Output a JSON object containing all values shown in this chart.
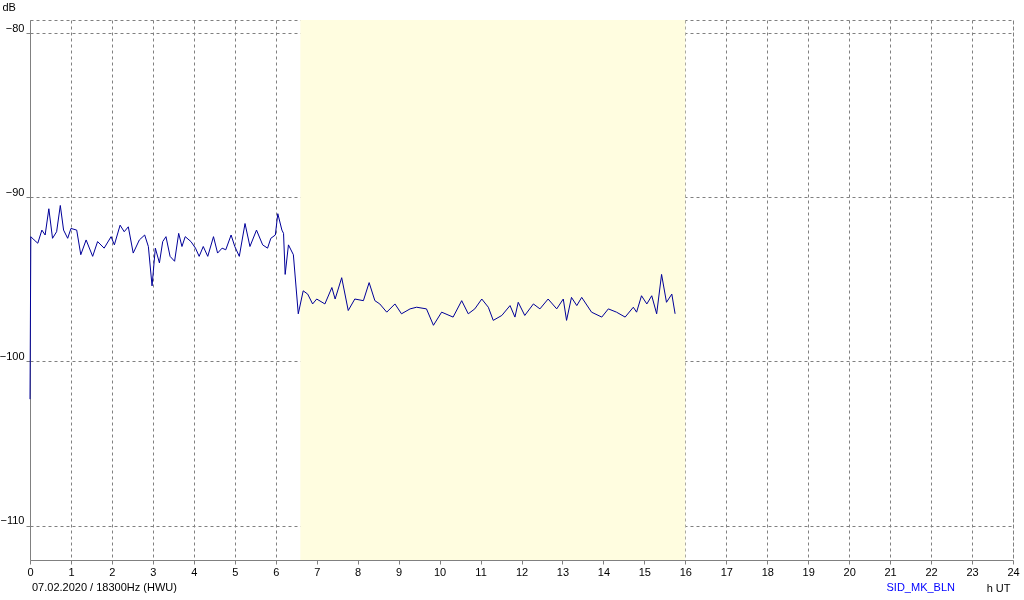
{
  "chart_data": {
    "type": "line",
    "xlabel": "h UT",
    "ylabel": "dB",
    "annotations": [
      "07.02.2020 / 18300Hz (HWU)",
      "SID_MK_BLN"
    ],
    "xlim": [
      0,
      24
    ],
    "xticks": [
      0,
      1,
      2,
      3,
      4,
      5,
      6,
      7,
      8,
      9,
      10,
      11,
      12,
      13,
      14,
      15,
      16,
      17,
      18,
      19,
      20,
      21,
      22,
      23,
      24
    ],
    "ylim": [
      -112.1,
      -79.2
    ],
    "yticks": [
      -80,
      -90,
      -100,
      -110
    ],
    "grid": true,
    "line_style": "solid",
    "bands": [
      {
        "axis": "x",
        "from": 6.6,
        "to": 16.0,
        "color": "#fffde0"
      }
    ],
    "series": [
      {
        "color": "#000099",
        "x": [
          0,
          0.02,
          0.1,
          0.19,
          0.29,
          0.37,
          0.46,
          0.55,
          0.65,
          0.74,
          0.82,
          0.92,
          1.0,
          1.14,
          1.24,
          1.37,
          1.53,
          1.65,
          1.81,
          1.98,
          2.06,
          2.2,
          2.3,
          2.4,
          2.52,
          2.67,
          2.8,
          2.89,
          2.98,
          3.06,
          3.16,
          3.24,
          3.32,
          3.42,
          3.53,
          3.63,
          3.71,
          3.79,
          3.93,
          4.04,
          4.13,
          4.23,
          4.34,
          4.48,
          4.58,
          4.69,
          4.78,
          4.91,
          5.0,
          5.11,
          5.25,
          5.37,
          5.53,
          5.68,
          5.8,
          5.88,
          5.99,
          6.05,
          6.15,
          6.19,
          6.23,
          6.31,
          6.43,
          6.55,
          6.67,
          6.78,
          6.9,
          7.0,
          7.2,
          7.37,
          7.45,
          7.61,
          7.77,
          7.93,
          8.14,
          8.28,
          8.42,
          8.54,
          8.71,
          8.91,
          9.07,
          9.28,
          9.44,
          9.68,
          9.85,
          10.05,
          10.33,
          10.54,
          10.7,
          10.86,
          11.03,
          11.19,
          11.31,
          11.52,
          11.72,
          11.84,
          11.92,
          12.08,
          12.29,
          12.45,
          12.65,
          12.86,
          13.02,
          13.1,
          13.22,
          13.35,
          13.47,
          13.71,
          13.96,
          14.12,
          14.32,
          14.53,
          14.73,
          14.81,
          14.93,
          15.06,
          15.18,
          15.3,
          15.42,
          15.54,
          15.67,
          15.75
        ],
        "values": [
          -102.3,
          -92.4,
          -92.6,
          -92.8,
          -92.0,
          -92.3,
          -90.7,
          -92.5,
          -92.1,
          -90.5,
          -92.0,
          -92.5,
          -91.9,
          -92.0,
          -93.5,
          -92.6,
          -93.6,
          -92.7,
          -93.1,
          -92.4,
          -92.9,
          -91.7,
          -92.1,
          -91.8,
          -93.4,
          -92.6,
          -92.3,
          -93.0,
          -95.4,
          -93.1,
          -94.0,
          -92.7,
          -92.4,
          -93.6,
          -93.9,
          -92.2,
          -93.0,
          -92.4,
          -92.7,
          -93.1,
          -93.6,
          -93.0,
          -93.6,
          -92.4,
          -93.4,
          -93.1,
          -93.2,
          -92.3,
          -93.0,
          -93.6,
          -91.6,
          -93.0,
          -92.0,
          -92.9,
          -93.1,
          -92.5,
          -92.3,
          -91.0,
          -92.0,
          -92.2,
          -94.7,
          -92.9,
          -93.5,
          -97.1,
          -95.7,
          -95.9,
          -96.5,
          -96.2,
          -96.5,
          -95.5,
          -96.2,
          -94.9,
          -96.9,
          -96.2,
          -96.3,
          -95.2,
          -96.3,
          -96.5,
          -97.0,
          -96.5,
          -97.1,
          -96.8,
          -96.7,
          -96.8,
          -97.8,
          -97.0,
          -97.3,
          -96.3,
          -97.1,
          -96.8,
          -96.2,
          -96.7,
          -97.5,
          -97.2,
          -96.6,
          -97.3,
          -96.4,
          -97.2,
          -96.5,
          -96.8,
          -96.2,
          -96.8,
          -96.2,
          -97.5,
          -96.1,
          -96.6,
          -96.1,
          -97.0,
          -97.3,
          -96.8,
          -97.0,
          -97.3,
          -96.7,
          -97.0,
          -96.0,
          -96.5,
          -96.0,
          -97.1,
          -94.7,
          -96.4,
          -95.9,
          -97.1
        ]
      }
    ]
  }
}
